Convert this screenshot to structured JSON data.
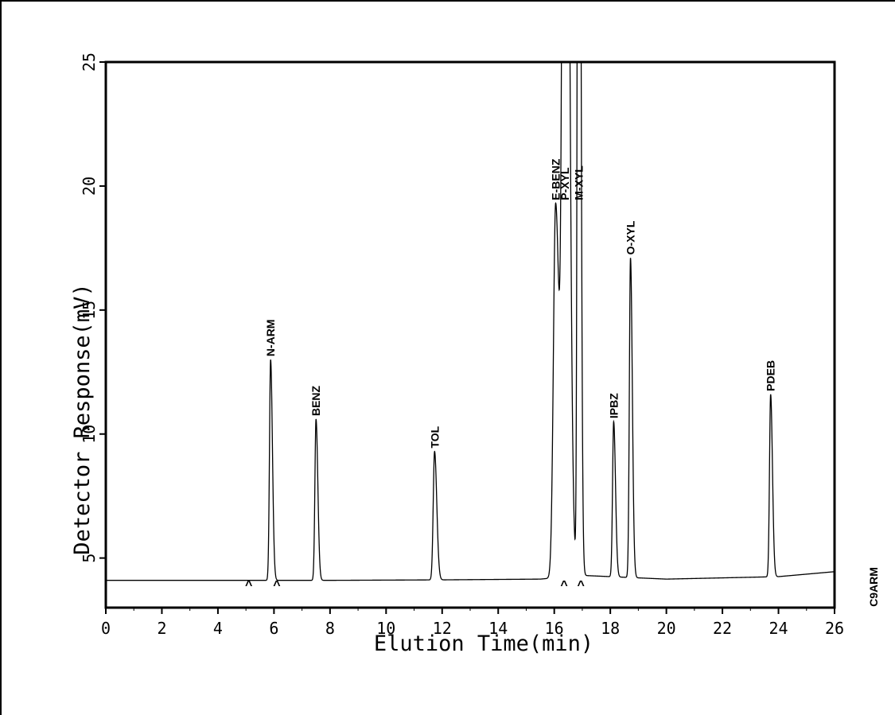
{
  "chart_data": {
    "type": "line",
    "title": "",
    "xlabel": "Elution Time(min)",
    "ylabel": "Detector Response(mV)",
    "side_label": "C9ARM",
    "xlim": [
      0,
      26
    ],
    "ylim": [
      3,
      25
    ],
    "x_ticks": [
      0,
      2,
      4,
      6,
      8,
      10,
      12,
      14,
      16,
      18,
      20,
      22,
      24,
      26
    ],
    "y_ticks": [
      5,
      10,
      15,
      20,
      25
    ],
    "grid": false,
    "baseline_points": [
      [
        0,
        4.1
      ],
      [
        3,
        4.1
      ],
      [
        8,
        4.1
      ],
      [
        12,
        4.12
      ],
      [
        15.5,
        4.15
      ],
      [
        17,
        4.3
      ],
      [
        20,
        4.15
      ],
      [
        24,
        4.25
      ],
      [
        26,
        4.45
      ]
    ],
    "series": [
      {
        "peaks": [
          {
            "label": "N-ARM",
            "x": 5.88,
            "y": 13.0,
            "width": 0.05
          },
          {
            "label": "BENZ",
            "x": 7.5,
            "y": 10.6,
            "width": 0.05
          },
          {
            "label": "TOL",
            "x": 11.73,
            "y": 9.3,
            "width": 0.06
          },
          {
            "label": "E-BENZ",
            "x": 16.05,
            "y": 19.3,
            "width": 0.1
          },
          {
            "label": "P-XYL",
            "x": 16.38,
            "y": 60.0,
            "width": 0.1
          },
          {
            "label": "M-XYL",
            "x": 16.87,
            "y": 60.0,
            "width": 0.05
          },
          {
            "label": "IPBZ",
            "x": 18.12,
            "y": 10.5,
            "width": 0.05
          },
          {
            "label": "O-XYL",
            "x": 18.72,
            "y": 17.1,
            "width": 0.05
          },
          {
            "label": "PDEB",
            "x": 23.72,
            "y": 11.6,
            "width": 0.05
          }
        ]
      }
    ],
    "markers": [
      {
        "label": "^",
        "x": 5.1
      },
      {
        "label": "^",
        "x": 6.1
      },
      {
        "label": "^",
        "x": 16.35
      },
      {
        "label": "^",
        "x": 16.95
      }
    ]
  }
}
